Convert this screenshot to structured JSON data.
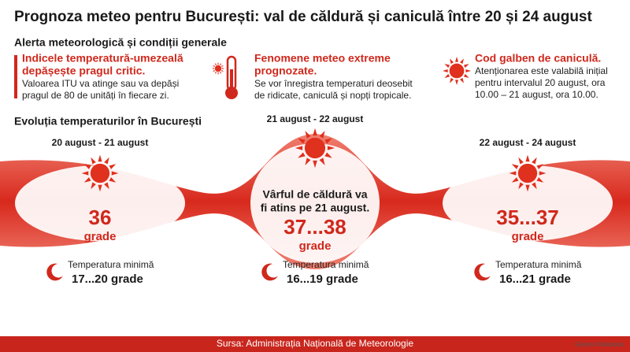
{
  "header": {
    "title": "Prognoza meteo pentru București: val de căldură și caniculă între 20 și 24 august",
    "subtitle": "Alerta meteorologică și condiții generale"
  },
  "alerts": [
    {
      "title_lines": [
        "Indicele temperatură-umezeală",
        "depășește pragul critic."
      ],
      "body_lines": [
        "Valoarea ITU va atinge sau va depăși",
        "pragul de 80 de unități în fiecare zi."
      ]
    },
    {
      "title_lines": [
        "Fenomene meteo extreme",
        "prognozate."
      ],
      "body_lines": [
        "Se vor înregistra temperaturi deosebit",
        "de ridicate, caniculă și nopți tropicale."
      ]
    },
    {
      "title_lines": [
        "Cod galben de caniculă."
      ],
      "body_lines": [
        "Atenționarea este valabilă inițial",
        "pentru intervalul 20 august, ora",
        "10.00 – 21 august, ora 10.00."
      ]
    }
  ],
  "evolution": {
    "title": "Evoluția temperaturilor în București",
    "periods": [
      {
        "dates": "20 august - 21 august",
        "temperature": "36",
        "unit": "grade",
        "min_label": "Temperatura minimă",
        "min_value": "17...20 grade"
      },
      {
        "dates": "21 august - 22 august",
        "note_lines": [
          "Vârful de căldură va",
          "fi atins pe 21 august."
        ],
        "temperature": "37...38",
        "unit": "grade",
        "min_label": "Temperatura minimă",
        "min_value": "16...19 grade"
      },
      {
        "dates": "22 august - 24 august",
        "temperature": "35...37",
        "unit": "grade",
        "min_label": "Temperatura minimă",
        "min_value": "16...21 grade"
      }
    ]
  },
  "footer": {
    "source": "Sursa: Administrația Națională de Meteorologie",
    "brand": "Gemini Notebook"
  }
}
